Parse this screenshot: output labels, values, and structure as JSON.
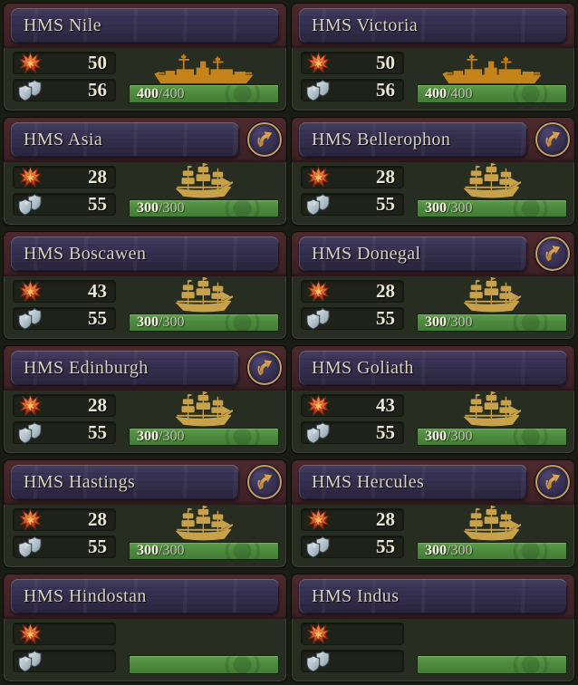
{
  "labels": {
    "hp_separator": "/"
  },
  "colors": {
    "background": "#191c13",
    "card_background": "#282d21",
    "header_plate": "#352f4b",
    "header_backing_maroon": "#452529",
    "hp_bar_green": "#4d8a3e",
    "ship_gold_sail": "#c7a24a",
    "ship_gold_ironclad": "#c4841a",
    "upgrade_ring_gold": "#c49d5c",
    "attack_icon_orange": "#d96a28",
    "defense_icon_silver": "#b9c6ce"
  },
  "icons": {
    "attack": "explosion-burst-icon",
    "defense": "double-shield-icon",
    "upgrade": "curved-arrow-up-right-icon",
    "ship_sail": "three-masted-sailing-ship-icon",
    "ship_ironclad": "ironclad-battleship-icon"
  },
  "ships": [
    {
      "name": "HMS Nile",
      "attack": "50",
      "defense": "56",
      "hp_current": "400",
      "hp_max": "400",
      "ship_type": "ironclad",
      "has_upgrade": false
    },
    {
      "name": "HMS Victoria",
      "attack": "50",
      "defense": "56",
      "hp_current": "400",
      "hp_max": "400",
      "ship_type": "ironclad",
      "has_upgrade": false
    },
    {
      "name": "HMS Asia",
      "attack": "28",
      "defense": "55",
      "hp_current": "300",
      "hp_max": "300",
      "ship_type": "sail",
      "has_upgrade": true
    },
    {
      "name": "HMS Bellerophon",
      "attack": "28",
      "defense": "55",
      "hp_current": "300",
      "hp_max": "300",
      "ship_type": "sail",
      "has_upgrade": true
    },
    {
      "name": "HMS Boscawen",
      "attack": "43",
      "defense": "55",
      "hp_current": "300",
      "hp_max": "300",
      "ship_type": "sail",
      "has_upgrade": false
    },
    {
      "name": "HMS Donegal",
      "attack": "28",
      "defense": "55",
      "hp_current": "300",
      "hp_max": "300",
      "ship_type": "sail",
      "has_upgrade": true
    },
    {
      "name": "HMS Edinburgh",
      "attack": "28",
      "defense": "55",
      "hp_current": "300",
      "hp_max": "300",
      "ship_type": "sail",
      "has_upgrade": true
    },
    {
      "name": "HMS Goliath",
      "attack": "43",
      "defense": "55",
      "hp_current": "300",
      "hp_max": "300",
      "ship_type": "sail",
      "has_upgrade": false
    },
    {
      "name": "HMS Hastings",
      "attack": "28",
      "defense": "55",
      "hp_current": "300",
      "hp_max": "300",
      "ship_type": "sail",
      "has_upgrade": true
    },
    {
      "name": "HMS Hercules",
      "attack": "28",
      "defense": "55",
      "hp_current": "300",
      "hp_max": "300",
      "ship_type": "sail",
      "has_upgrade": true
    },
    {
      "name": "HMS Hindostan",
      "has_upgrade": false
    },
    {
      "name": "HMS Indus",
      "has_upgrade": false
    }
  ]
}
